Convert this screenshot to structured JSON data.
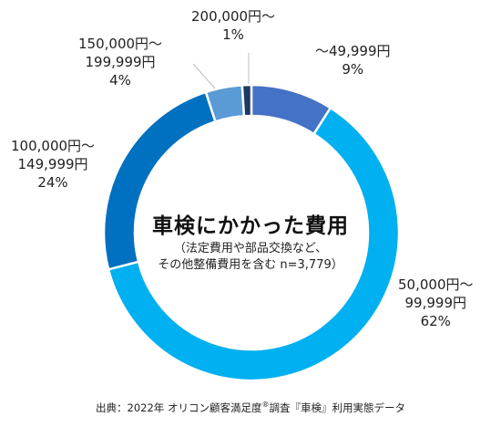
{
  "chart_data": {
    "type": "pie",
    "style": "donut",
    "title": "車検にかかった費用",
    "note_lines": [
      "（法定費用や部品交換など、",
      "その他整備費用を含む n=3,779）"
    ],
    "slices": [
      {
        "label_lines": [
          "～49,999円"
        ],
        "value": 9,
        "value_text": "9%",
        "color": "#4472c4"
      },
      {
        "label_lines": [
          "50,000円～",
          "99,999円"
        ],
        "value": 62,
        "value_text": "62%",
        "color": "#00b0f0"
      },
      {
        "label_lines": [
          "100,000円～",
          "149,999円"
        ],
        "value": 24,
        "value_text": "24%",
        "color": "#0070c0"
      },
      {
        "label_lines": [
          "150,000円～",
          "199,999円"
        ],
        "value": 4,
        "value_text": "4%",
        "color": "#5b9bd5"
      },
      {
        "label_lines": [
          "200,000円～"
        ],
        "value": 1,
        "value_text": "1%",
        "color": "#1f3864"
      }
    ]
  },
  "source": {
    "prefix": "出典：2022年 オリコン顧客満足度",
    "reg": "®",
    "suffix": "調査『車検』利用実態データ"
  }
}
